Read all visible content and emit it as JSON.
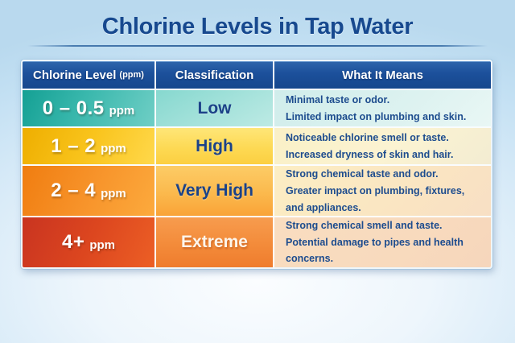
{
  "title": "Chlorine Levels in Tap Water",
  "table": {
    "headers": {
      "level": "Chlorine Level",
      "level_unit": "(ppm)",
      "classification": "Classification",
      "meaning": "What It Means"
    },
    "rows": [
      {
        "level": "0 – 0.5",
        "unit": "ppm",
        "classification": "Low",
        "meaning_line1": "Minimal taste or odor.",
        "meaning_line2": "Limited impact on plumbing and skin."
      },
      {
        "level": "1 – 2",
        "unit": "ppm",
        "classification": "High",
        "meaning_line1": "Noticeable chlorine smell or taste.",
        "meaning_line2": "Increased dryness of skin and hair."
      },
      {
        "level": "2 – 4",
        "unit": "ppm",
        "classification": "Very High",
        "meaning_line1": "Strong chemical taste and odor.",
        "meaning_line2": "Greater impact on plumbing, fixtures, and appliances."
      },
      {
        "level": "4+",
        "unit": "ppm",
        "classification": "Extreme",
        "meaning_line1": "Strong chemical smell and taste.",
        "meaning_line2": "Potential damage to pipes and health concerns."
      }
    ]
  },
  "colors": {
    "background": "#c3e0f3",
    "title_text": "#17498f",
    "header_bg": "#1c509b",
    "body_text": "#1d4c8e",
    "row_low_accent": "#2aada3",
    "row_high_accent": "#f5b800",
    "row_very_high_accent": "#f68c1f",
    "row_extreme_accent": "#d84323"
  },
  "chart_data": {
    "type": "table",
    "title": "Chlorine Levels in Tap Water",
    "columns": [
      "Chlorine Level (ppm)",
      "Classification",
      "What It Means"
    ],
    "rows": [
      [
        "0 – 0.5 ppm",
        "Low",
        "Minimal taste or odor. Limited impact on plumbing and skin."
      ],
      [
        "1 – 2 ppm",
        "High",
        "Noticeable chlorine smell or taste. Increased dryness of skin and hair."
      ],
      [
        "2 – 4 ppm",
        "Very High",
        "Strong chemical taste and odor. Greater impact on plumbing, fixtures, and appliances."
      ],
      [
        "4+ ppm",
        "Extreme",
        "Strong chemical smell and taste. Potential damage to pipes and health concerns."
      ]
    ],
    "legend_position": "none",
    "grid": true
  }
}
